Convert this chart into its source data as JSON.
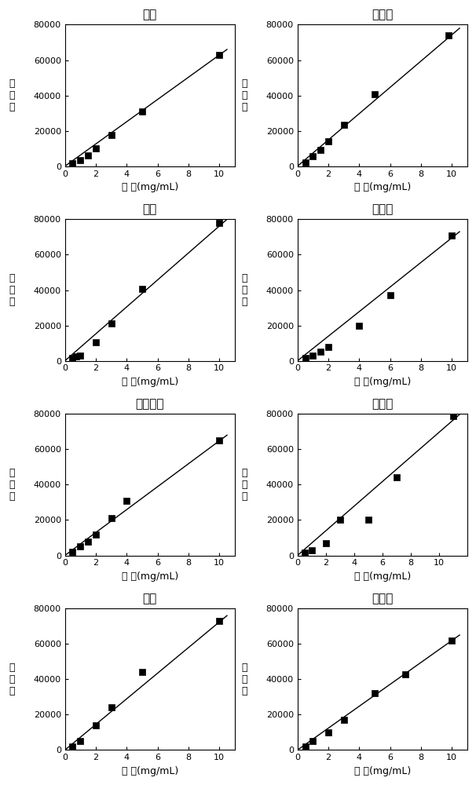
{
  "plots": [
    {
      "title": "木糖",
      "x": [
        0.5,
        1.0,
        1.5,
        2.0,
        3.0,
        5.0,
        10.0
      ],
      "y": [
        1500,
        3500,
        6000,
        10000,
        17500,
        31000,
        63000
      ],
      "line_x": [
        0,
        10.5
      ],
      "line_y": [
        0,
        66000
      ],
      "ylim": [
        0,
        80000
      ],
      "xlim": [
        0,
        11
      ],
      "xticks": [
        0,
        2,
        4,
        6,
        8,
        10
      ],
      "xtick_labels": [
        "0",
        "2",
        "4",
        "6",
        "8",
        "10"
      ]
    },
    {
      "title": "木糖醇",
      "x": [
        0.5,
        1.0,
        1.5,
        2.0,
        3.0,
        5.0,
        9.8
      ],
      "y": [
        2200,
        5500,
        9000,
        14000,
        23500,
        40500,
        74000
      ],
      "line_x": [
        0,
        10.5
      ],
      "line_y": [
        0,
        78000
      ],
      "ylim": [
        0,
        80000
      ],
      "xlim": [
        0,
        11
      ],
      "xticks": [
        0,
        2,
        4,
        6,
        8,
        10
      ],
      "xtick_labels": [
        "0",
        "2",
        "4",
        "6",
        "8",
        "10"
      ]
    },
    {
      "title": "果糖",
      "x": [
        0.5,
        0.75,
        1.0,
        2.0,
        3.0,
        5.0,
        10.0
      ],
      "y": [
        1500,
        2500,
        3000,
        10500,
        21000,
        40500,
        78000
      ],
      "line_x": [
        0,
        10.5
      ],
      "line_y": [
        0,
        80000
      ],
      "ylim": [
        0,
        80000
      ],
      "xlim": [
        0,
        11
      ],
      "xticks": [
        0,
        2,
        4,
        6,
        8,
        10
      ],
      "xtick_labels": [
        "0",
        "2",
        "4",
        "6",
        "8",
        "10"
      ]
    },
    {
      "title": "葡萄糖",
      "x": [
        0.5,
        1.0,
        1.5,
        2.0,
        4.0,
        6.0,
        10.0
      ],
      "y": [
        1500,
        3000,
        5000,
        8000,
        20000,
        37000,
        71000
      ],
      "line_x": [
        0,
        10.5
      ],
      "line_y": [
        0,
        73000
      ],
      "ylim": [
        0,
        80000
      ],
      "xlim": [
        0,
        11
      ],
      "xticks": [
        0,
        2,
        4,
        6,
        8,
        10
      ],
      "xtick_labels": [
        "0",
        "2",
        "4",
        "6",
        "8",
        "10"
      ]
    },
    {
      "title": "赤藓糖醇",
      "x": [
        0.5,
        1.0,
        1.5,
        2.0,
        3.0,
        4.0,
        10.0
      ],
      "y": [
        2000,
        5000,
        8000,
        12000,
        21000,
        31000,
        65000
      ],
      "line_x": [
        0,
        10.5
      ],
      "line_y": [
        0,
        68000
      ],
      "ylim": [
        0,
        80000
      ],
      "xlim": [
        0,
        11
      ],
      "xticks": [
        0,
        2,
        4,
        6,
        8,
        10
      ],
      "xtick_labels": [
        "0",
        "2",
        "4",
        "6",
        "8",
        "10"
      ]
    },
    {
      "title": "甘露醇",
      "x": [
        0.5,
        1.0,
        2.0,
        3.0,
        5.0,
        7.0,
        11.0
      ],
      "y": [
        1500,
        3000,
        7000,
        20000,
        20000,
        44000,
        79000
      ],
      "line_x": [
        0,
        11.5
      ],
      "line_y": [
        0,
        80000
      ],
      "ylim": [
        0,
        80000
      ],
      "xlim": [
        0,
        12
      ],
      "xticks": [
        0,
        2,
        4,
        6,
        8,
        10
      ],
      "xtick_labels": [
        "0",
        "2",
        "4",
        "6",
        "8",
        "10"
      ]
    },
    {
      "title": "蔗糖",
      "x": [
        0.5,
        1.0,
        2.0,
        3.0,
        5.0,
        10.0
      ],
      "y": [
        2000,
        5000,
        14000,
        24000,
        44000,
        73000
      ],
      "line_x": [
        0,
        10.5
      ],
      "line_y": [
        0,
        76000
      ],
      "ylim": [
        0,
        80000
      ],
      "xlim": [
        0,
        11
      ],
      "xticks": [
        0,
        2,
        4,
        6,
        8,
        10
      ],
      "xtick_labels": [
        "0",
        "2",
        "4",
        "6",
        "8",
        "10"
      ]
    },
    {
      "title": "麦芽糖",
      "x": [
        0.5,
        1.0,
        2.0,
        3.0,
        5.0,
        7.0,
        10.0
      ],
      "y": [
        2000,
        5000,
        10000,
        17000,
        32000,
        43000,
        62000
      ],
      "line_x": [
        0,
        10.5
      ],
      "line_y": [
        0,
        65000
      ],
      "ylim": [
        0,
        80000
      ],
      "xlim": [
        0,
        11
      ],
      "xticks": [
        0,
        2,
        4,
        6,
        8,
        10
      ],
      "xtick_labels": [
        "0",
        "2",
        "4",
        "6",
        "8",
        "10"
      ]
    }
  ],
  "ylabel": "峰\n面\n积",
  "xlabel_prefix": "浓 度(mg/mL)",
  "marker": "s",
  "marker_size": 6,
  "marker_color": "black",
  "line_color": "black",
  "title_fontsize": 11,
  "label_fontsize": 9,
  "tick_fontsize": 8
}
